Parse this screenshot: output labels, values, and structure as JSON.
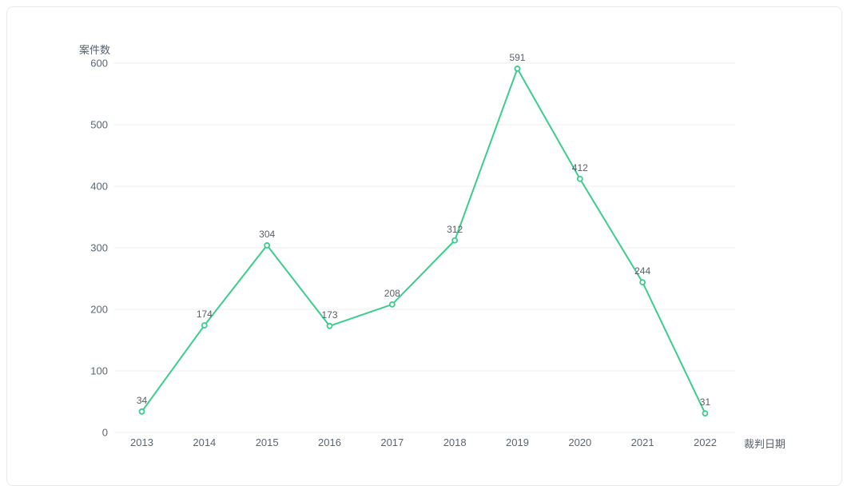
{
  "chart_data": {
    "type": "line",
    "title": "",
    "categories": [
      "2013",
      "2014",
      "2015",
      "2016",
      "2017",
      "2018",
      "2019",
      "2020",
      "2021",
      "2022"
    ],
    "values": [
      34,
      174,
      304,
      173,
      208,
      312,
      591,
      412,
      244,
      31
    ],
    "data_labels": [
      "34",
      "174",
      "304",
      "173",
      "208",
      "312",
      "591",
      "412",
      "244",
      "31"
    ],
    "xlabel": "裁判日期",
    "ylabel": "案件数",
    "ylim": [
      0,
      600
    ],
    "y_ticks": [
      0,
      100,
      200,
      300,
      400,
      500,
      600
    ],
    "grid": true,
    "legend": "none",
    "style": {
      "line_color": "#3bcd8c",
      "marker": "hollow-circle",
      "marker_fill": "#ffffff",
      "grid_color": "#ededed",
      "tick_text_color": "#5a6673",
      "data_label_color": "#595f66",
      "card_border_color": "#e7e9ec",
      "background": "#ffffff"
    }
  }
}
